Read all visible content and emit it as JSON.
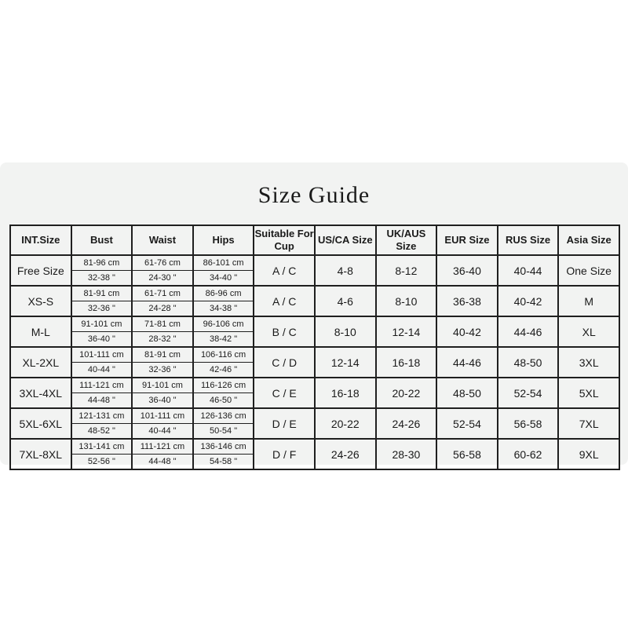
{
  "page": {
    "background": "#ffffff",
    "panel_background": "#f2f3f2",
    "border_color": "#1f1f1f",
    "text_color": "#1a1a1a"
  },
  "title": "Size Guide",
  "size_table": {
    "columns": [
      "INT.Size",
      "Bust",
      "Waist",
      "Hips",
      "Suitable For Cup",
      "US/CA Size",
      "UK/AUS Size",
      "EUR Size",
      "RUS Size",
      "Asia Size"
    ],
    "rows": [
      {
        "int_size": "Free Size",
        "bust_cm": "81-96 cm",
        "bust_in": "32-38 \"",
        "waist_cm": "61-76 cm",
        "waist_in": "24-30 \"",
        "hips_cm": "86-101 cm",
        "hips_in": "34-40 \"",
        "cup": "A / C",
        "us_ca": "4-8",
        "uk_aus": "8-12",
        "eur": "36-40",
        "rus": "40-44",
        "asia": "One Size"
      },
      {
        "int_size": "XS-S",
        "bust_cm": "81-91 cm",
        "bust_in": "32-36 \"",
        "waist_cm": "61-71 cm",
        "waist_in": "24-28 \"",
        "hips_cm": "86-96 cm",
        "hips_in": "34-38 \"",
        "cup": "A / C",
        "us_ca": "4-6",
        "uk_aus": "8-10",
        "eur": "36-38",
        "rus": "40-42",
        "asia": "M"
      },
      {
        "int_size": "M-L",
        "bust_cm": "91-101 cm",
        "bust_in": "36-40 \"",
        "waist_cm": "71-81 cm",
        "waist_in": "28-32 \"",
        "hips_cm": "96-106 cm",
        "hips_in": "38-42 \"",
        "cup": "B / C",
        "us_ca": "8-10",
        "uk_aus": "12-14",
        "eur": "40-42",
        "rus": "44-46",
        "asia": "XL"
      },
      {
        "int_size": "XL-2XL",
        "bust_cm": "101-111 cm",
        "bust_in": "40-44 \"",
        "waist_cm": "81-91 cm",
        "waist_in": "32-36 \"",
        "hips_cm": "106-116 cm",
        "hips_in": "42-46 \"",
        "cup": "C / D",
        "us_ca": "12-14",
        "uk_aus": "16-18",
        "eur": "44-46",
        "rus": "48-50",
        "asia": "3XL"
      },
      {
        "int_size": "3XL-4XL",
        "bust_cm": "111-121 cm",
        "bust_in": "44-48 \"",
        "waist_cm": "91-101 cm",
        "waist_in": "36-40 \"",
        "hips_cm": "116-126 cm",
        "hips_in": "46-50 \"",
        "cup": "C / E",
        "us_ca": "16-18",
        "uk_aus": "20-22",
        "eur": "48-50",
        "rus": "52-54",
        "asia": "5XL"
      },
      {
        "int_size": "5XL-6XL",
        "bust_cm": "121-131 cm",
        "bust_in": "48-52 \"",
        "waist_cm": "101-111 cm",
        "waist_in": "40-44 \"",
        "hips_cm": "126-136 cm",
        "hips_in": "50-54 \"",
        "cup": "D / E",
        "us_ca": "20-22",
        "uk_aus": "24-26",
        "eur": "52-54",
        "rus": "56-58",
        "asia": "7XL"
      },
      {
        "int_size": "7XL-8XL",
        "bust_cm": "131-141 cm",
        "bust_in": "52-56 \"",
        "waist_cm": "111-121 cm",
        "waist_in": "44-48 \"",
        "hips_cm": "136-146 cm",
        "hips_in": "54-58 \"",
        "cup": "D / F",
        "us_ca": "24-26",
        "uk_aus": "28-30",
        "eur": "56-58",
        "rus": "60-62",
        "asia": "9XL"
      }
    ]
  }
}
